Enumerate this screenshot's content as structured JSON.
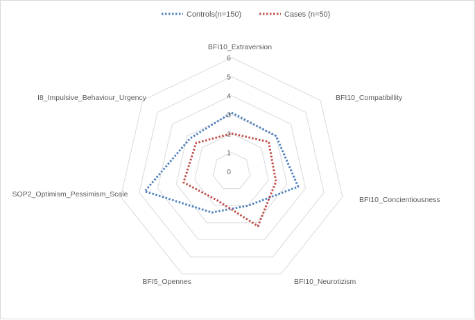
{
  "chart_data": {
    "type": "radar",
    "categories": [
      "BFI10_Extraversion",
      "BFI10_Compatibillity",
      "BFI10_Concientiousness",
      "BFI10_Neurotizism",
      "BFI5_Opennes",
      "SOP2_Optimism_Pessimism_Scale",
      "I8_Impulsive_Behaviour_Urgency"
    ],
    "series": [
      {
        "name": "Controls(n=150)",
        "values": [
          3.1,
          3.0,
          3.6,
          2.0,
          2.4,
          4.7,
          2.8
        ],
        "color": "#4f81bd"
      },
      {
        "name": "Cases (n=50)",
        "values": [
          2.0,
          2.5,
          2.4,
          3.2,
          1.7,
          2.6,
          2.4
        ],
        "color": "#c0504d"
      }
    ],
    "ticks": [
      "0",
      "1",
      "2",
      "3",
      "4",
      "5",
      "6"
    ],
    "range": [
      0,
      6
    ],
    "gridlines": true,
    "legend_position": "top"
  }
}
